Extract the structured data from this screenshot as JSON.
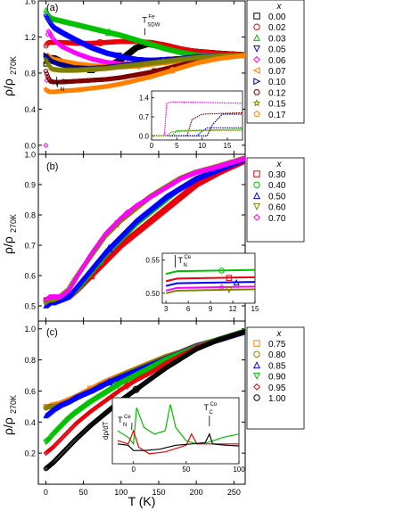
{
  "figure": {
    "xlabel": "T (K)",
    "ylabel_main": "ρ/ρ",
    "ylabel_sub": "270K",
    "x_ticks": [
      0,
      50,
      100,
      150,
      200,
      250
    ]
  },
  "chart_data": [
    {
      "type": "scatter",
      "panel_label": "(a)",
      "xlim": [
        -10,
        265
      ],
      "ylim": [
        -0.1,
        1.6
      ],
      "y_ticks": [
        0.0,
        0.4,
        0.8,
        1.2,
        1.6
      ],
      "legend_title": "x",
      "annotations": [
        {
          "text": "T",
          "sup": "Fe",
          "sub": "SDW",
          "x": 128,
          "y": 1.2
        },
        {
          "text": "T",
          "sup": "Ce",
          "sub": "N",
          "x": 5,
          "y": 0.8
        }
      ],
      "series": [
        {
          "name": "0.00",
          "marker": "square",
          "color": "#000000",
          "x": [
            0,
            2,
            5,
            10,
            20,
            40,
            60,
            80,
            100,
            120,
            135,
            150,
            170,
            200,
            230,
            270
          ],
          "y": [
            0.9,
            0.95,
            0.97,
            0.97,
            0.93,
            0.86,
            0.84,
            0.86,
            0.95,
            1.08,
            1.12,
            1.1,
            1.07,
            1.04,
            1.02,
            1.0
          ]
        },
        {
          "name": "0.02",
          "marker": "circle",
          "color": "#e8000b",
          "x": [
            0,
            2,
            5,
            10,
            20,
            40,
            60,
            80,
            100,
            120,
            140,
            160,
            180,
            200,
            230,
            270
          ],
          "y": [
            1.1,
            1.13,
            1.14,
            1.14,
            1.14,
            1.13,
            1.13,
            1.14,
            1.15,
            1.15,
            1.14,
            1.11,
            1.07,
            1.04,
            1.02,
            1.0
          ]
        },
        {
          "name": "0.03",
          "marker": "triangle-up",
          "color": "#00c000",
          "x": [
            0,
            3,
            6,
            10,
            20,
            40,
            60,
            80,
            100,
            120,
            140,
            160,
            180,
            200,
            230,
            270
          ],
          "y": [
            1.5,
            1.45,
            1.42,
            1.4,
            1.38,
            1.34,
            1.3,
            1.26,
            1.22,
            1.17,
            1.12,
            1.07,
            1.03,
            1.0,
            0.99,
            1.0
          ]
        },
        {
          "name": "0.05",
          "marker": "triangle-down",
          "color": "#0000ff",
          "x": [
            0,
            3,
            6,
            10,
            20,
            40,
            60,
            80,
            100,
            120,
            140,
            160,
            180,
            200,
            230,
            270
          ],
          "y": [
            1.42,
            1.38,
            1.34,
            1.3,
            1.25,
            1.16,
            1.08,
            1.02,
            0.98,
            0.95,
            0.94,
            0.95,
            0.96,
            0.98,
            0.99,
            1.0
          ]
        },
        {
          "name": "0.06",
          "marker": "diamond",
          "color": "#ff00ff",
          "x": [
            0,
            1,
            2,
            3,
            5,
            8,
            12,
            20,
            40,
            60,
            80,
            100,
            130,
            160,
            200,
            230,
            270
          ],
          "y": [
            0.0,
            0.6,
            1.2,
            1.27,
            1.25,
            1.2,
            1.16,
            1.1,
            1.02,
            0.96,
            0.92,
            0.9,
            0.9,
            0.93,
            0.96,
            0.98,
            1.0
          ]
        },
        {
          "name": "0.07",
          "marker": "triangle-left",
          "color": "#ff8000",
          "x": [
            0,
            3,
            6,
            10,
            20,
            40,
            60,
            80,
            100,
            120,
            140,
            160,
            180,
            200,
            230,
            270
          ],
          "y": [
            1.0,
            0.98,
            0.96,
            0.95,
            0.93,
            0.9,
            0.88,
            0.87,
            0.87,
            0.88,
            0.9,
            0.92,
            0.94,
            0.96,
            0.98,
            1.0
          ]
        },
        {
          "name": "0.10",
          "marker": "triangle-right",
          "color": "#000080",
          "x": [
            0,
            3,
            6,
            10,
            20,
            40,
            60,
            80,
            100,
            120,
            140,
            160,
            180,
            200,
            230,
            270
          ],
          "y": [
            1.0,
            0.97,
            0.95,
            0.93,
            0.9,
            0.86,
            0.85,
            0.86,
            0.88,
            0.9,
            0.92,
            0.94,
            0.96,
            0.97,
            0.99,
            1.0
          ]
        },
        {
          "name": "0.12",
          "marker": "hexagon",
          "color": "#800000",
          "x": [
            0,
            3,
            6,
            10,
            20,
            40,
            60,
            80,
            100,
            120,
            140,
            160,
            180,
            200,
            230,
            270
          ],
          "y": [
            0.82,
            0.75,
            0.71,
            0.7,
            0.7,
            0.71,
            0.72,
            0.73,
            0.75,
            0.78,
            0.81,
            0.85,
            0.89,
            0.93,
            0.97,
            1.0
          ]
        },
        {
          "name": "0.15",
          "marker": "star",
          "color": "#808000",
          "x": [
            0,
            3,
            6,
            10,
            20,
            40,
            60,
            80,
            100,
            120,
            140,
            160,
            180,
            200,
            230,
            270
          ],
          "y": [
            0.95,
            0.9,
            0.86,
            0.84,
            0.83,
            0.83,
            0.84,
            0.85,
            0.87,
            0.89,
            0.91,
            0.93,
            0.95,
            0.97,
            0.99,
            1.0
          ]
        },
        {
          "name": "0.17",
          "marker": "pentagon",
          "color": "#ff8000",
          "x": [
            0,
            3,
            6,
            10,
            20,
            40,
            60,
            80,
            100,
            120,
            140,
            160,
            180,
            200,
            230,
            270
          ],
          "y": [
            0.62,
            0.6,
            0.59,
            0.59,
            0.6,
            0.61,
            0.63,
            0.65,
            0.68,
            0.72,
            0.76,
            0.81,
            0.86,
            0.91,
            0.96,
            1.0
          ]
        }
      ]
    },
    {
      "type": "scatter",
      "panel_label": "(b)",
      "xlim": [
        -10,
        265
      ],
      "ylim": [
        0.45,
        1.0
      ],
      "y_ticks": [
        0.5,
        0.6,
        0.7,
        0.8,
        0.9,
        1.0
      ],
      "legend_title": "x",
      "series": [
        {
          "name": "0.30",
          "marker": "square",
          "color": "#e8000b",
          "x": [
            0,
            5,
            10,
            20,
            30,
            40,
            60,
            80,
            100,
            120,
            140,
            160,
            180,
            200,
            230,
            270
          ],
          "y": [
            0.52,
            0.52,
            0.52,
            0.52,
            0.53,
            0.55,
            0.6,
            0.65,
            0.7,
            0.74,
            0.78,
            0.82,
            0.86,
            0.9,
            0.94,
            0.985
          ]
        },
        {
          "name": "0.40",
          "marker": "circle",
          "color": "#00c000",
          "x": [
            0,
            5,
            10,
            20,
            30,
            40,
            60,
            80,
            100,
            120,
            140,
            160,
            180,
            200,
            230,
            270
          ],
          "y": [
            0.51,
            0.52,
            0.52,
            0.52,
            0.53,
            0.55,
            0.61,
            0.67,
            0.72,
            0.77,
            0.81,
            0.85,
            0.89,
            0.92,
            0.95,
            0.99
          ]
        },
        {
          "name": "0.50",
          "marker": "triangle-up",
          "color": "#0000ff",
          "x": [
            0,
            5,
            10,
            20,
            30,
            40,
            60,
            80,
            100,
            120,
            140,
            160,
            180,
            200,
            230,
            270
          ],
          "y": [
            0.5,
            0.51,
            0.51,
            0.52,
            0.53,
            0.56,
            0.62,
            0.68,
            0.73,
            0.78,
            0.82,
            0.86,
            0.89,
            0.92,
            0.95,
            0.99
          ]
        },
        {
          "name": "0.60",
          "marker": "triangle-down",
          "color": "#808000",
          "x": [
            0,
            5,
            10,
            20,
            30,
            40,
            60,
            80,
            100,
            120,
            140,
            160,
            180,
            200,
            230,
            270
          ],
          "y": [
            0.51,
            0.52,
            0.52,
            0.53,
            0.55,
            0.59,
            0.66,
            0.73,
            0.78,
            0.82,
            0.86,
            0.89,
            0.92,
            0.94,
            0.96,
            0.99
          ]
        },
        {
          "name": "0.70",
          "marker": "diamond",
          "color": "#ff00ff",
          "x": [
            0,
            5,
            10,
            20,
            30,
            40,
            60,
            80,
            100,
            120,
            140,
            160,
            180,
            200,
            230,
            270
          ],
          "y": [
            0.52,
            0.53,
            0.53,
            0.53,
            0.55,
            0.59,
            0.67,
            0.74,
            0.79,
            0.83,
            0.86,
            0.89,
            0.92,
            0.94,
            0.96,
            0.99
          ]
        }
      ],
      "inset": {
        "annotation": {
          "text": "T",
          "sup": "Ce",
          "sub": "N"
        },
        "xlim": [
          2.5,
          15
        ],
        "ylim": [
          0.485,
          0.56
        ],
        "x_ticks": [
          3,
          6,
          9,
          12,
          15
        ],
        "y_ticks": [
          0.5,
          0.55
        ]
      }
    },
    {
      "type": "scatter",
      "panel_label": "(c)",
      "xlim": [
        -10,
        265
      ],
      "ylim": [
        0.0,
        1.05
      ],
      "y_ticks": [
        0.2,
        0.4,
        0.6,
        0.8,
        1.0
      ],
      "legend_title": "x",
      "series": [
        {
          "name": "0.75",
          "marker": "square",
          "color": "#ff8000",
          "x": [
            0,
            5,
            10,
            20,
            30,
            40,
            60,
            80,
            100,
            120,
            140,
            160,
            180,
            200,
            230,
            270
          ],
          "y": [
            0.5,
            0.5,
            0.51,
            0.52,
            0.54,
            0.56,
            0.61,
            0.66,
            0.7,
            0.74,
            0.78,
            0.82,
            0.85,
            0.89,
            0.93,
            0.99
          ]
        },
        {
          "name": "0.80",
          "marker": "circle",
          "color": "#808000",
          "x": [
            0,
            5,
            10,
            20,
            30,
            40,
            60,
            80,
            100,
            120,
            140,
            160,
            180,
            200,
            230,
            270
          ],
          "y": [
            0.49,
            0.5,
            0.5,
            0.51,
            0.53,
            0.55,
            0.6,
            0.65,
            0.7,
            0.74,
            0.78,
            0.82,
            0.85,
            0.89,
            0.93,
            0.99
          ]
        },
        {
          "name": "0.85",
          "marker": "triangle-up",
          "color": "#0000ff",
          "x": [
            0,
            5,
            10,
            20,
            30,
            40,
            60,
            80,
            100,
            120,
            140,
            160,
            180,
            200,
            230,
            270
          ],
          "y": [
            0.44,
            0.46,
            0.48,
            0.51,
            0.53,
            0.56,
            0.6,
            0.65,
            0.69,
            0.73,
            0.77,
            0.81,
            0.85,
            0.89,
            0.93,
            0.99
          ]
        },
        {
          "name": "0.90",
          "marker": "triangle-down",
          "color": "#00c000",
          "x": [
            0,
            5,
            10,
            20,
            30,
            40,
            60,
            80,
            100,
            120,
            140,
            160,
            180,
            200,
            230,
            270
          ],
          "y": [
            0.27,
            0.29,
            0.32,
            0.37,
            0.42,
            0.46,
            0.53,
            0.59,
            0.65,
            0.7,
            0.75,
            0.8,
            0.84,
            0.88,
            0.93,
            0.99
          ]
        },
        {
          "name": "0.95",
          "marker": "diamond",
          "color": "#e8000b",
          "x": [
            0,
            5,
            10,
            20,
            30,
            40,
            60,
            80,
            100,
            120,
            140,
            160,
            180,
            200,
            230,
            270
          ],
          "y": [
            0.2,
            0.22,
            0.24,
            0.29,
            0.34,
            0.39,
            0.47,
            0.54,
            0.61,
            0.67,
            0.72,
            0.78,
            0.83,
            0.88,
            0.93,
            0.99
          ]
        },
        {
          "name": "1.00",
          "marker": "circle",
          "color": "#000000",
          "x": [
            0,
            5,
            10,
            20,
            30,
            40,
            60,
            80,
            100,
            120,
            140,
            160,
            180,
            200,
            230,
            270
          ],
          "y": [
            0.1,
            0.12,
            0.14,
            0.19,
            0.24,
            0.29,
            0.38,
            0.46,
            0.54,
            0.61,
            0.68,
            0.75,
            0.81,
            0.87,
            0.93,
            0.99
          ]
        }
      ],
      "inset": {
        "ylabel": "dρ/dT",
        "annotations": [
          {
            "text": "T",
            "sup": "Ce",
            "sub": "N"
          },
          {
            "text": "T",
            "sup": "Co",
            "sub": "C"
          }
        ],
        "xlim": [
          -20,
          100
        ],
        "x_ticks": [
          0,
          50,
          100
        ]
      }
    }
  ]
}
